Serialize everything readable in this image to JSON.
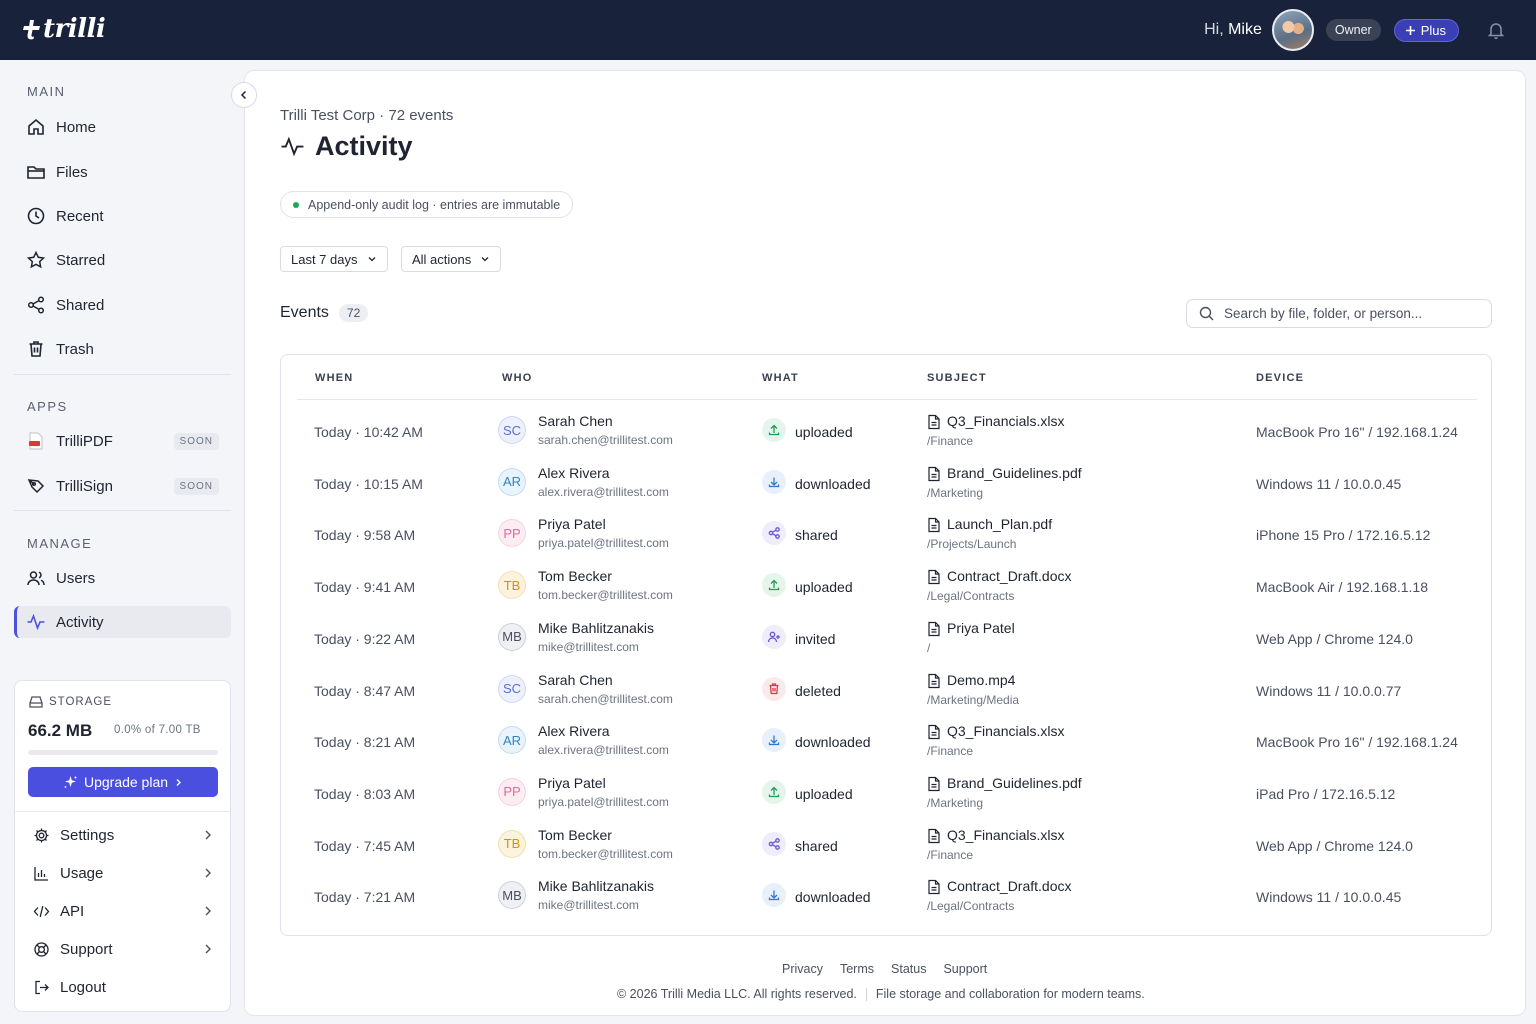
{
  "brand": {
    "name": "trilli"
  },
  "topbar": {
    "greeting": "Hi,",
    "user_name": "Mike",
    "role_badge": "Owner",
    "plan_badge": "Plus"
  },
  "sidebar": {
    "sections": {
      "main": "MAIN",
      "apps": "APPS",
      "manage": "MANAGE"
    },
    "main_items": [
      {
        "label": "Home",
        "icon": "home-icon"
      },
      {
        "label": "Files",
        "icon": "folder-icon"
      },
      {
        "label": "Recent",
        "icon": "clock-icon"
      },
      {
        "label": "Starred",
        "icon": "star-icon"
      },
      {
        "label": "Shared",
        "icon": "share-icon"
      },
      {
        "label": "Trash",
        "icon": "trash-icon"
      }
    ],
    "app_items": [
      {
        "label": "TrilliPDF",
        "badge": "SOON",
        "icon": "pdf-icon"
      },
      {
        "label": "TrilliSign",
        "badge": "SOON",
        "icon": "sign-icon"
      }
    ],
    "manage_items": [
      {
        "label": "Users",
        "icon": "users-icon"
      },
      {
        "label": "Activity",
        "icon": "activity-icon",
        "active": true
      }
    ],
    "storage": {
      "label": "STORAGE",
      "used": "66.2 MB",
      "of_text": "0.0% of 7.00 TB",
      "used_fraction": 0.0,
      "upgrade_label": "Upgrade plan"
    },
    "bottom_menu": [
      {
        "label": "Settings",
        "icon": "gear-icon"
      },
      {
        "label": "Usage",
        "icon": "chart-icon"
      },
      {
        "label": "API",
        "icon": "code-icon"
      },
      {
        "label": "Support",
        "icon": "lifebuoy-icon"
      },
      {
        "label": "Logout",
        "icon": "logout-icon"
      }
    ]
  },
  "page": {
    "breadcrumb": "Trilli Test Corp · 72 events",
    "title": "Activity",
    "note": "Append-only audit log · entries are immutable",
    "filters": {
      "range": "Last 7 days",
      "actions": "All actions"
    },
    "events_label": "Events",
    "events_count": "72",
    "search_placeholder": "Search by file, folder, or person..."
  },
  "table": {
    "headers": {
      "when": "WHEN",
      "who": "WHO",
      "what": "WHAT",
      "subject": "SUBJECT",
      "device": "DEVICE"
    },
    "rows": [
      {
        "when": "Today · 10:42 AM",
        "initials": "SC",
        "name": "Sarah Chen",
        "email": "sarah.chen@trillitest.com",
        "action": "uploaded",
        "file": "Q3_Financials.xlsx",
        "path": "/Finance",
        "device": "MacBook Pro 16\" / 192.168.1.24"
      },
      {
        "when": "Today · 10:15 AM",
        "initials": "AR",
        "name": "Alex Rivera",
        "email": "alex.rivera@trillitest.com",
        "action": "downloaded",
        "file": "Brand_Guidelines.pdf",
        "path": "/Marketing",
        "device": "Windows 11 / 10.0.0.45"
      },
      {
        "when": "Today · 9:58 AM",
        "initials": "PP",
        "name": "Priya Patel",
        "email": "priya.patel@trillitest.com",
        "action": "shared",
        "file": "Launch_Plan.pdf",
        "path": "/Projects/Launch",
        "device": "iPhone 15 Pro / 172.16.5.12"
      },
      {
        "when": "Today · 9:41 AM",
        "initials": "TB",
        "name": "Tom Becker",
        "email": "tom.becker@trillitest.com",
        "action": "uploaded",
        "file": "Contract_Draft.docx",
        "path": "/Legal/Contracts",
        "device": "MacBook Air / 192.168.1.18"
      },
      {
        "when": "Today · 9:22 AM",
        "initials": "MB",
        "name": "Mike Bahlitzanakis",
        "email": "mike@trillitest.com",
        "action": "invited",
        "file": "Priya Patel",
        "path": "/",
        "device": "Web App / Chrome 124.0"
      },
      {
        "when": "Today · 8:47 AM",
        "initials": "SC",
        "name": "Sarah Chen",
        "email": "sarah.chen@trillitest.com",
        "action": "deleted",
        "file": "Demo.mp4",
        "path": "/Marketing/Media",
        "device": "Windows 11 / 10.0.0.77"
      },
      {
        "when": "Today · 8:21 AM",
        "initials": "AR",
        "name": "Alex Rivera",
        "email": "alex.rivera@trillitest.com",
        "action": "downloaded",
        "file": "Q3_Financials.xlsx",
        "path": "/Finance",
        "device": "MacBook Pro 16\" / 192.168.1.24"
      },
      {
        "when": "Today · 8:03 AM",
        "initials": "PP",
        "name": "Priya Patel",
        "email": "priya.patel@trillitest.com",
        "action": "uploaded",
        "file": "Brand_Guidelines.pdf",
        "path": "/Marketing",
        "device": "iPad Pro / 172.16.5.12"
      },
      {
        "when": "Today · 7:45 AM",
        "initials": "TB",
        "name": "Tom Becker",
        "email": "tom.becker@trillitest.com",
        "action": "shared",
        "file": "Q3_Financials.xlsx",
        "path": "/Finance",
        "device": "Web App / Chrome 124.0"
      },
      {
        "when": "Today · 7:21 AM",
        "initials": "MB",
        "name": "Mike Bahlitzanakis",
        "email": "mike@trillitest.com",
        "action": "downloaded",
        "file": "Contract_Draft.docx",
        "path": "/Legal/Contracts",
        "device": "Windows 11 / 10.0.0.45"
      }
    ]
  },
  "colors": {
    "topbar": "#18223a",
    "accent": "#4a4fe0",
    "avatar_SC": "#5b6fd1",
    "avatar_AR": "#2f86c9",
    "avatar_PP": "#e2699a",
    "avatar_TB": "#c9960f",
    "avatar_MB": "#4a5060",
    "uploaded": "#1f9d55",
    "downloaded": "#2f78d1",
    "shared": "#6b57d6",
    "invited": "#6b57d6",
    "deleted": "#d6394a"
  },
  "footer": {
    "links": [
      "Privacy",
      "Terms",
      "Status",
      "Support"
    ],
    "copyright": "© 2026 Trilli Media LLC. All rights reserved.",
    "tagline": "File storage and collaboration for modern teams."
  }
}
